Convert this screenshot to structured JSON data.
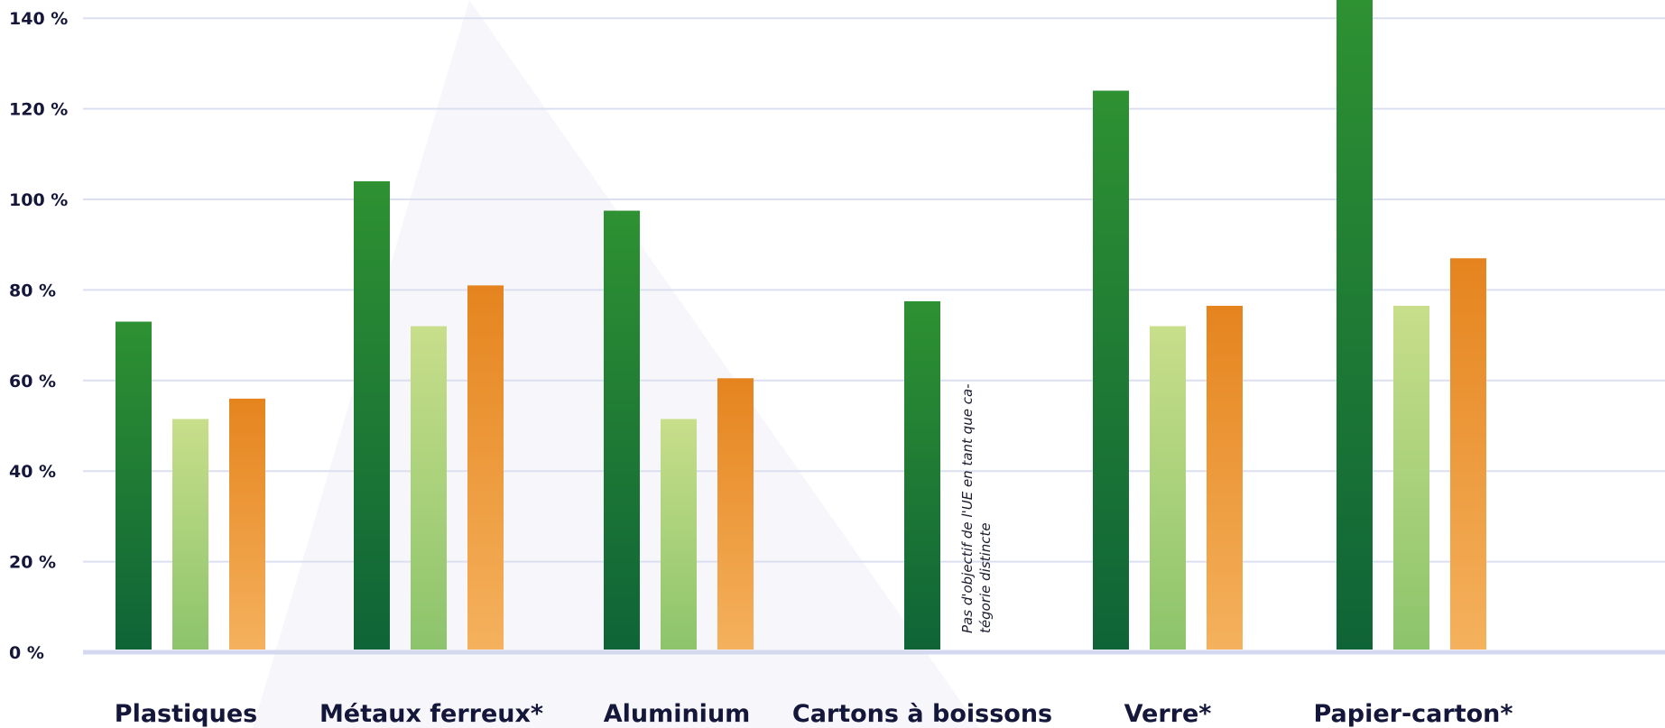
{
  "chart_data": {
    "type": "bar",
    "categories": [
      "Plastiques",
      "Métaux ferreux*",
      "Aluminium",
      "Cartons à boissons",
      "Verre*",
      "Papier-carton*"
    ],
    "series": [
      {
        "values": [
          73,
          104,
          97.5,
          77.5,
          124,
          150
        ],
        "colors": [
          "#2e9132",
          "#0f6437"
        ]
      },
      {
        "values": [
          51.5,
          72,
          51.5,
          null,
          72,
          76.5
        ],
        "colors": [
          "#c8de8b",
          "#8cc46b"
        ]
      },
      {
        "values": [
          56,
          81,
          60.5,
          null,
          76.5,
          87
        ],
        "colors": [
          "#e5841e",
          "#f5b15d"
        ]
      }
    ],
    "yticks": [
      "0 %",
      "20 %",
      "40 %",
      "60 %",
      "80 %",
      "100 %",
      "120 %",
      "140 %"
    ],
    "ylim": [
      0,
      140
    ],
    "grid": true,
    "annotation": "Pas d'objectif de l'UE en tant que ca- tégorie distincte",
    "annotation_lines": [
      "Pas d'objectif de l'UE en tant que ca-",
      "tégorie distincte"
    ],
    "colors": {
      "grid": "#dcdff0",
      "baseline": "#d5d9ef",
      "text": "#14163a"
    }
  }
}
